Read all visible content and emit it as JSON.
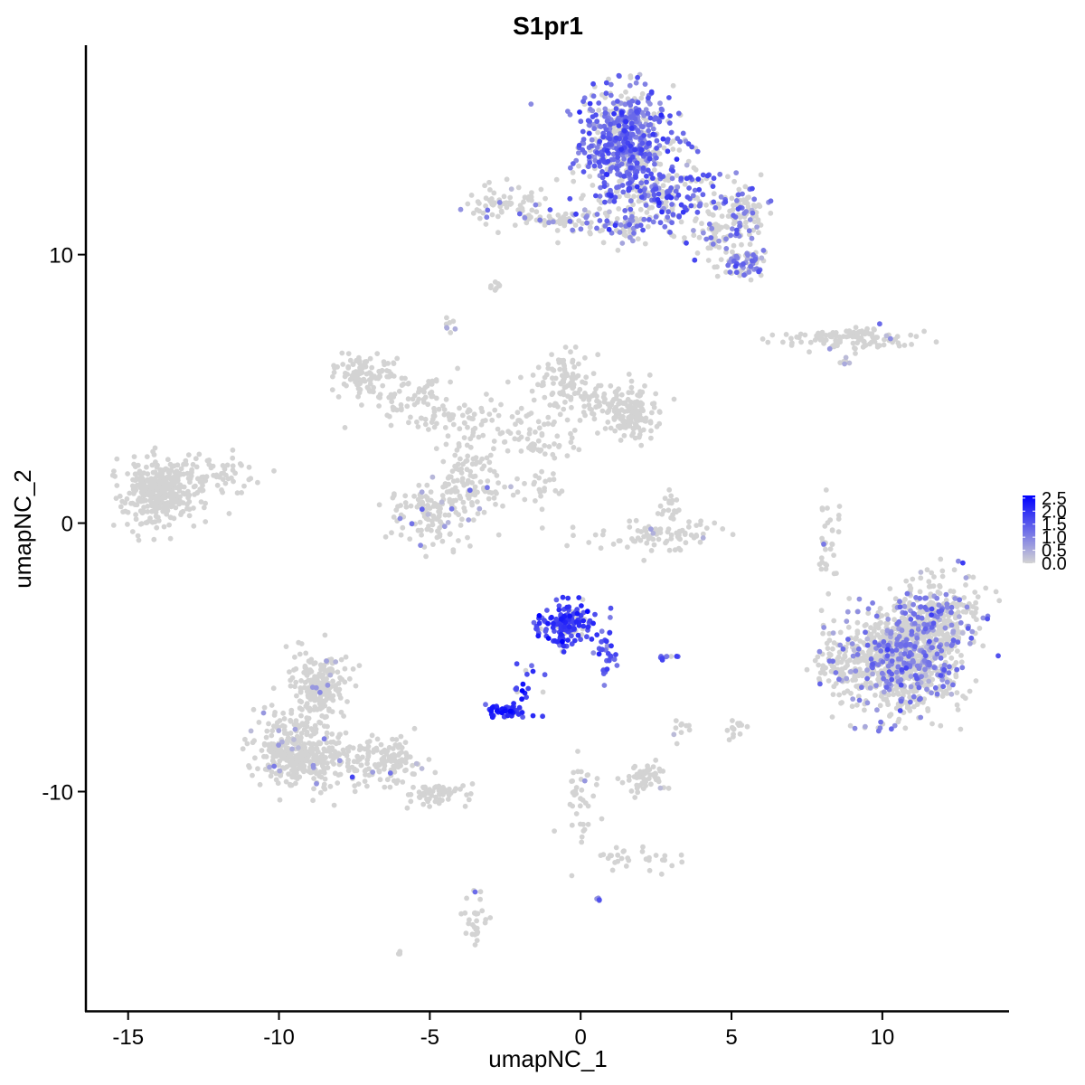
{
  "chart_data": {
    "type": "scatter",
    "title": "S1pr1",
    "xlabel": "umapNC_1",
    "ylabel": "umapNC_2",
    "xlim": [
      -16.4,
      14.2
    ],
    "ylim": [
      -18.2,
      17.8
    ],
    "x_ticks": [
      -15,
      -10,
      -5,
      0,
      5,
      10
    ],
    "x_tick_labels": [
      "-15",
      "-10",
      "-5",
      "0",
      "5",
      "10"
    ],
    "y_ticks": [
      -10,
      0,
      10
    ],
    "y_tick_labels": [
      "-10",
      "0",
      "10"
    ],
    "grid": false,
    "legend_position": "right",
    "color_scale": {
      "low_color": "#d3d3d3",
      "high_color": "#0000ff",
      "min": 0,
      "max": 2.6,
      "ticks": [
        0.0,
        0.5,
        1.0,
        1.5,
        2.0,
        2.5
      ],
      "tick_labels": [
        "0.0",
        "0.5",
        "1.0",
        "1.5",
        "2.0",
        "2.5"
      ]
    },
    "clusters": [
      {
        "cx": 1.5,
        "cy": 14.2,
        "sx": 0.75,
        "sy": 1.0,
        "n": 600,
        "frac": 0.7,
        "mean": 1.25
      },
      {
        "cx": 2.8,
        "cy": 12.2,
        "sx": 1.2,
        "sy": 0.55,
        "n": 220,
        "frac": 0.5,
        "mean": 1.4
      },
      {
        "cx": 5.5,
        "cy": 11.6,
        "sx": 0.4,
        "sy": 0.35,
        "n": 60,
        "frac": 0.4,
        "mean": 1.2
      },
      {
        "cx": 4.8,
        "cy": 10.6,
        "sx": 0.6,
        "sy": 0.6,
        "n": 100,
        "frac": 0.3,
        "mean": 1.0
      },
      {
        "cx": 5.6,
        "cy": 9.7,
        "sx": 0.3,
        "sy": 0.3,
        "n": 50,
        "frac": 0.5,
        "mean": 1.0
      },
      {
        "cx": 1.0,
        "cy": 11.1,
        "sx": 1.1,
        "sy": 0.3,
        "n": 90,
        "frac": 0.3,
        "mean": 1.0
      },
      {
        "cx": -2.5,
        "cy": 11.8,
        "sx": 0.6,
        "sy": 0.35,
        "n": 70,
        "frac": 0.08,
        "mean": 0.8
      },
      {
        "cx": -1.0,
        "cy": 11.3,
        "sx": 0.7,
        "sy": 0.2,
        "n": 30,
        "frac": 0.2,
        "mean": 0.9
      },
      {
        "cx": -2.8,
        "cy": 8.8,
        "sx": 0.1,
        "sy": 0.1,
        "n": 8,
        "frac": 0.1,
        "mean": 0.6
      },
      {
        "cx": -4.4,
        "cy": 7.4,
        "sx": 0.1,
        "sy": 0.15,
        "n": 8,
        "frac": 0.2,
        "mean": 0.6
      },
      {
        "cx": 9.0,
        "cy": 6.9,
        "sx": 1.2,
        "sy": 0.2,
        "n": 110,
        "frac": 0.06,
        "mean": 0.7
      },
      {
        "cx": 8.8,
        "cy": 6.0,
        "sx": 0.15,
        "sy": 0.1,
        "n": 6,
        "frac": 0.5,
        "mean": 0.6
      },
      {
        "cx": -7.2,
        "cy": 5.6,
        "sx": 0.55,
        "sy": 0.4,
        "n": 90,
        "frac": 0.0,
        "mean": 0.5
      },
      {
        "cx": -5.4,
        "cy": 4.6,
        "sx": 0.9,
        "sy": 0.6,
        "n": 80,
        "frac": 0.0,
        "mean": 0.5
      },
      {
        "cx": -3.6,
        "cy": 3.8,
        "sx": 0.9,
        "sy": 0.5,
        "n": 70,
        "frac": 0.0,
        "mean": 0.5
      },
      {
        "cx": -1.5,
        "cy": 3.0,
        "sx": 0.7,
        "sy": 0.5,
        "n": 60,
        "frac": 0.02,
        "mean": 0.5
      },
      {
        "cx": -0.6,
        "cy": 5.3,
        "sx": 0.45,
        "sy": 0.6,
        "n": 80,
        "frac": 0.0,
        "mean": 0.5
      },
      {
        "cx": 1.0,
        "cy": 4.6,
        "sx": 0.9,
        "sy": 0.45,
        "n": 90,
        "frac": 0.0,
        "mean": 0.5
      },
      {
        "cx": 1.6,
        "cy": 3.9,
        "sx": 0.45,
        "sy": 0.35,
        "n": 110,
        "frac": 0.0,
        "mean": 0.5
      },
      {
        "cx": -5.0,
        "cy": 0.3,
        "sx": 0.55,
        "sy": 0.55,
        "n": 110,
        "frac": 0.12,
        "mean": 0.8
      },
      {
        "cx": -3.7,
        "cy": 1.3,
        "sx": 0.55,
        "sy": 0.75,
        "n": 110,
        "frac": 0.05,
        "mean": 0.8
      },
      {
        "cx": -1.5,
        "cy": 1.3,
        "sx": 0.6,
        "sy": 0.3,
        "n": 25,
        "frac": 0.1,
        "mean": 0.7
      },
      {
        "cx": 2.5,
        "cy": -0.5,
        "sx": 1.1,
        "sy": 0.3,
        "n": 80,
        "frac": 0.05,
        "mean": 0.7
      },
      {
        "cx": 3.0,
        "cy": 0.5,
        "sx": 0.2,
        "sy": 0.4,
        "n": 20,
        "frac": 0.0,
        "mean": 0.5
      },
      {
        "cx": -14.0,
        "cy": 1.2,
        "sx": 0.6,
        "sy": 0.55,
        "n": 350,
        "frac": 0.0,
        "mean": 0.5
      },
      {
        "cx": -12.3,
        "cy": 1.8,
        "sx": 0.7,
        "sy": 0.4,
        "n": 70,
        "frac": 0.0,
        "mean": 0.5
      },
      {
        "cx": 8.2,
        "cy": -0.6,
        "sx": 0.2,
        "sy": 0.9,
        "n": 35,
        "frac": 0.05,
        "mean": 0.8
      },
      {
        "cx": 10.7,
        "cy": -5.1,
        "sx": 0.95,
        "sy": 0.95,
        "n": 900,
        "frac": 0.3,
        "mean": 0.95
      },
      {
        "cx": 11.8,
        "cy": -3.4,
        "sx": 0.7,
        "sy": 0.7,
        "n": 250,
        "frac": 0.3,
        "mean": 0.95
      },
      {
        "cx": 8.6,
        "cy": -5.4,
        "sx": 0.35,
        "sy": 0.6,
        "n": 70,
        "frac": 0.1,
        "mean": 0.8
      },
      {
        "cx": -0.4,
        "cy": -3.8,
        "sx": 0.5,
        "sy": 0.4,
        "n": 150,
        "frac": 0.9,
        "mean": 1.85
      },
      {
        "cx": 0.8,
        "cy": -4.9,
        "sx": 0.2,
        "sy": 0.5,
        "n": 30,
        "frac": 0.8,
        "mean": 1.5
      },
      {
        "cx": -1.8,
        "cy": -6.2,
        "sx": 0.3,
        "sy": 0.5,
        "n": 20,
        "frac": 0.9,
        "mean": 1.9
      },
      {
        "cx": -2.5,
        "cy": -7.0,
        "sx": 0.3,
        "sy": 0.12,
        "n": 50,
        "frac": 0.9,
        "mean": 2.0
      },
      {
        "cx": 2.8,
        "cy": -5.0,
        "sx": 0.15,
        "sy": 0.05,
        "n": 10,
        "frac": 0.8,
        "mean": 1.6
      },
      {
        "cx": -8.6,
        "cy": -6.0,
        "sx": 0.45,
        "sy": 0.6,
        "n": 200,
        "frac": 0.04,
        "mean": 0.8
      },
      {
        "cx": -9.3,
        "cy": -8.5,
        "sx": 0.75,
        "sy": 0.7,
        "n": 350,
        "frac": 0.04,
        "mean": 0.8
      },
      {
        "cx": -6.8,
        "cy": -8.9,
        "sx": 0.8,
        "sy": 0.45,
        "n": 150,
        "frac": 0.02,
        "mean": 0.7
      },
      {
        "cx": -4.7,
        "cy": -10.1,
        "sx": 0.55,
        "sy": 0.2,
        "n": 60,
        "frac": 0.02,
        "mean": 0.7
      },
      {
        "cx": 2.2,
        "cy": -9.5,
        "sx": 0.4,
        "sy": 0.3,
        "n": 50,
        "frac": 0.04,
        "mean": 0.7
      },
      {
        "cx": 5.1,
        "cy": -7.7,
        "sx": 0.15,
        "sy": 0.2,
        "n": 15,
        "frac": 0.0,
        "mean": 0.5
      },
      {
        "cx": 3.3,
        "cy": -7.6,
        "sx": 0.2,
        "sy": 0.3,
        "n": 10,
        "frac": 0.1,
        "mean": 0.6
      },
      {
        "cx": 0.0,
        "cy": -10.2,
        "sx": 0.3,
        "sy": 0.9,
        "n": 40,
        "frac": 0.05,
        "mean": 0.7
      },
      {
        "cx": 2.0,
        "cy": -12.5,
        "sx": 0.6,
        "sy": 0.25,
        "n": 30,
        "frac": 0.0,
        "mean": 0.5
      },
      {
        "cx": -3.5,
        "cy": -14.7,
        "sx": 0.2,
        "sy": 0.5,
        "n": 30,
        "frac": 0.05,
        "mean": 0.6
      },
      {
        "cx": -6.0,
        "cy": -16.0,
        "sx": 0.05,
        "sy": 0.05,
        "n": 4,
        "frac": 0.0,
        "mean": 0.5
      },
      {
        "cx": 0.6,
        "cy": -14.0,
        "sx": 0.05,
        "sy": 0.05,
        "n": 4,
        "frac": 1.0,
        "mean": 1.1
      }
    ]
  }
}
